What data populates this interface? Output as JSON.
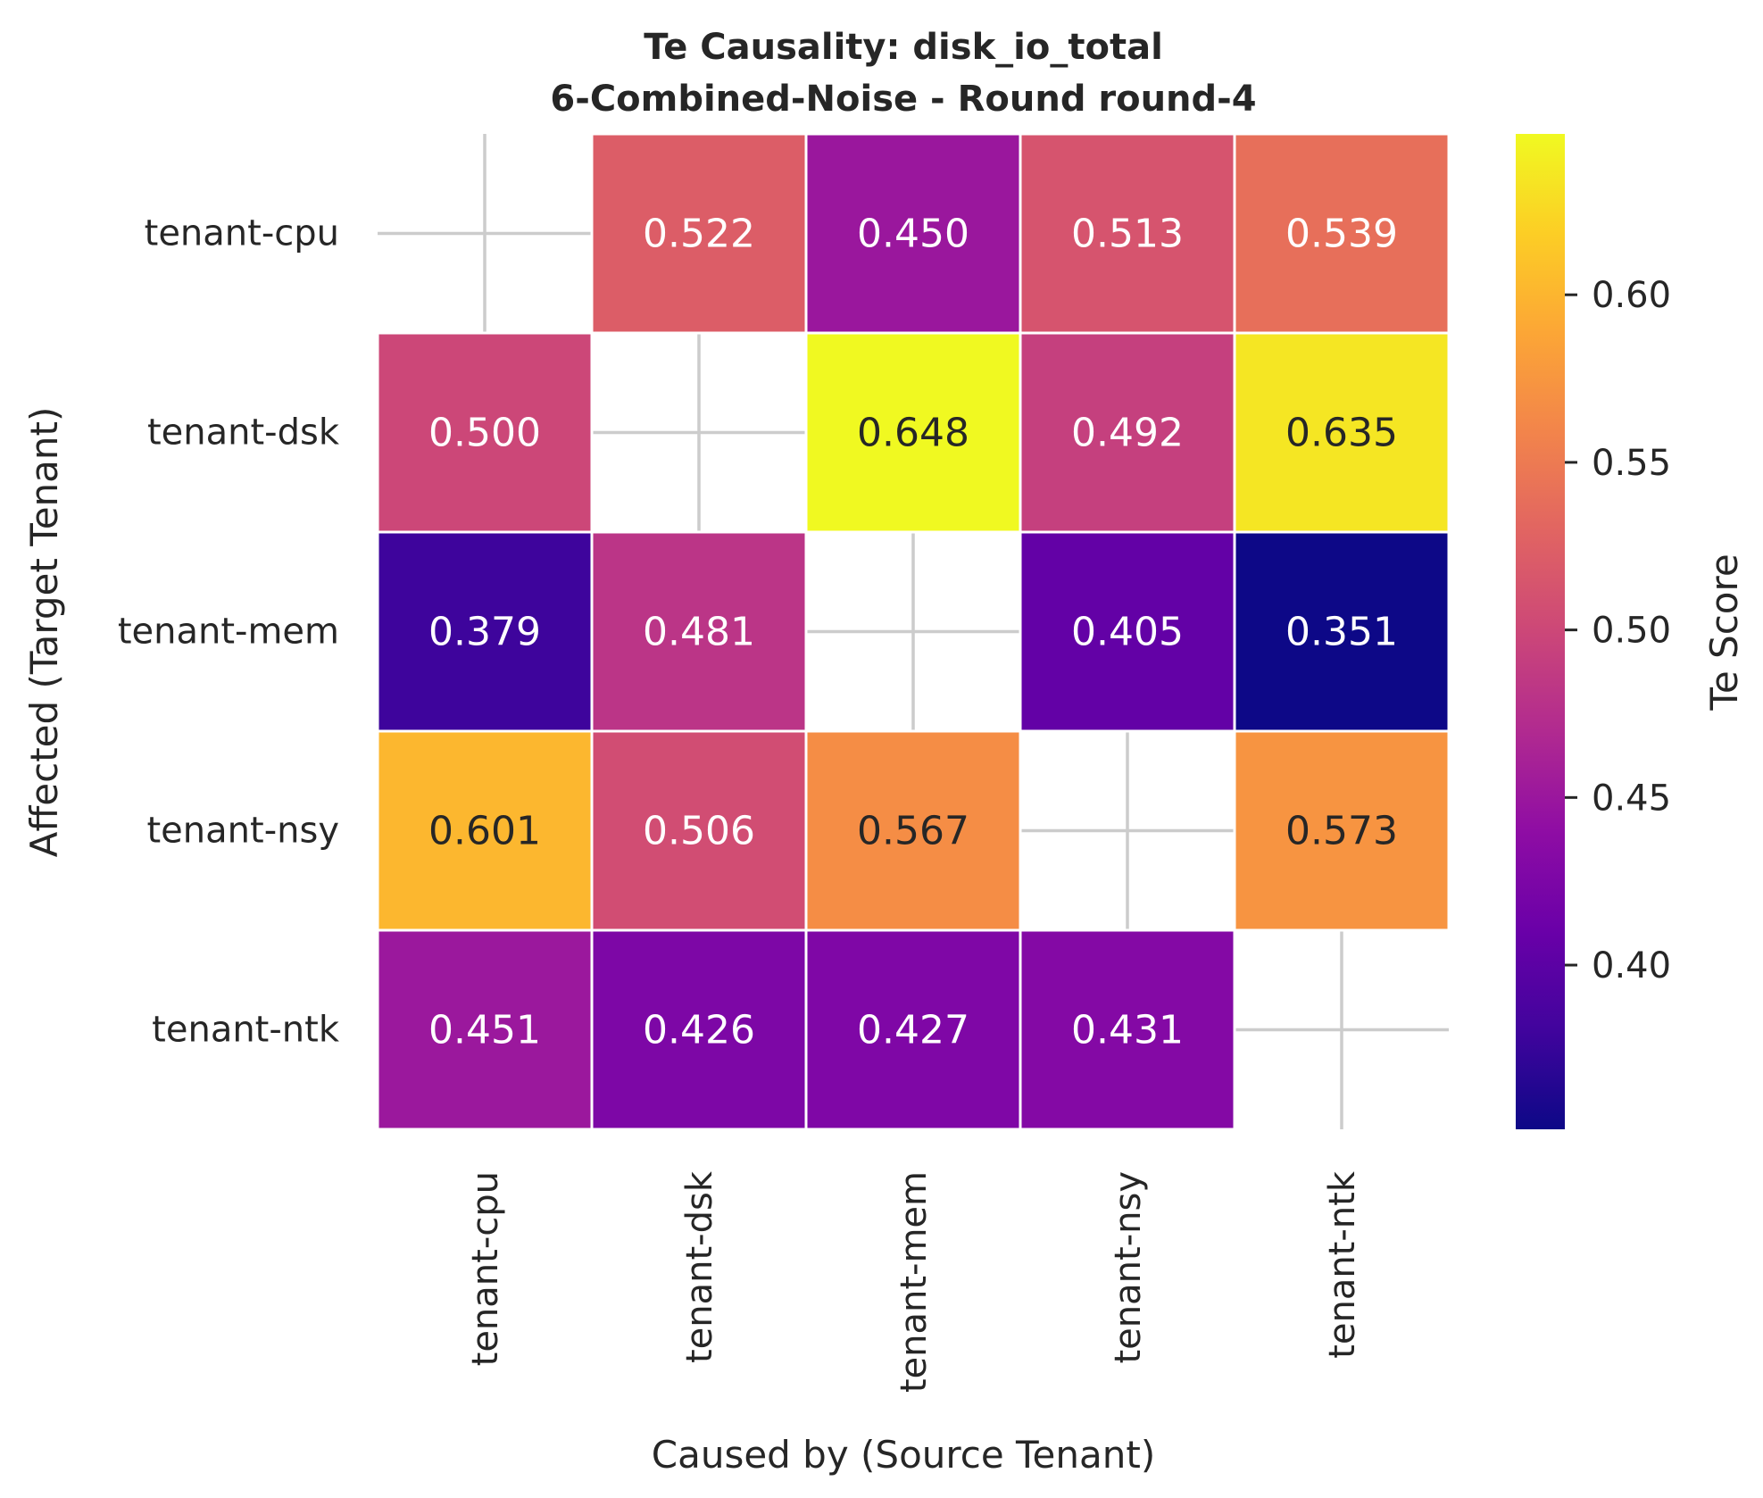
{
  "chart_data": {
    "type": "heatmap",
    "title": "Te Causality: disk_io_total",
    "subtitle": "6-Combined-Noise - Round round-4",
    "xlabel": "Caused by (Source Tenant)",
    "ylabel": "Affected (Target Tenant)",
    "x_categories": [
      "tenant-cpu",
      "tenant-dsk",
      "tenant-mem",
      "tenant-nsy",
      "tenant-ntk"
    ],
    "y_categories": [
      "tenant-cpu",
      "tenant-dsk",
      "tenant-mem",
      "tenant-nsy",
      "tenant-ntk"
    ],
    "values": [
      [
        null,
        0.522,
        0.45,
        0.513,
        0.539
      ],
      [
        0.5,
        null,
        0.648,
        0.492,
        0.635
      ],
      [
        0.379,
        0.481,
        null,
        0.405,
        0.351
      ],
      [
        0.601,
        0.506,
        0.567,
        null,
        0.573
      ],
      [
        0.451,
        0.426,
        0.427,
        0.431,
        null
      ]
    ],
    "value_format": "3 decimals",
    "colormap": "plasma",
    "colorbar": {
      "label": "Te Score",
      "range": [
        0.351,
        0.648
      ],
      "ticks": [
        0.4,
        0.45,
        0.5,
        0.55,
        0.6
      ],
      "tick_labels": [
        "0.40",
        "0.45",
        "0.50",
        "0.55",
        "0.60"
      ]
    },
    "grid": true,
    "empty_cell_color": "#ffffff"
  }
}
